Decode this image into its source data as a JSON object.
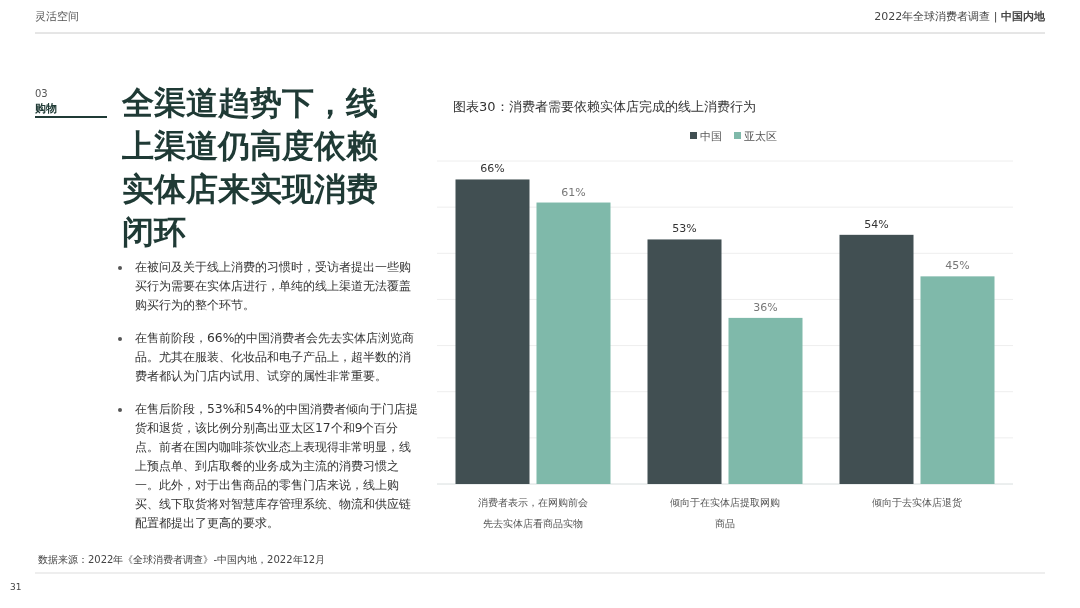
{
  "chart_data": {
    "type": "bar",
    "title": "图表30：消费者需要依赖实体店完成的线上消费行为",
    "categories": [
      "消费者表示，在网购前会先去实体店看商品实物",
      "倾向于在实体店提取网购商品",
      "倾向于去实体店退货"
    ],
    "series": [
      {
        "name": "中国",
        "color": "#414f52",
        "values": [
          66,
          53,
          54
        ],
        "value_labels": [
          "66%",
          "53%",
          "54%"
        ]
      },
      {
        "name": "亚太区",
        "color": "#7fb9aa",
        "values": [
          61,
          36,
          45
        ],
        "value_labels": [
          "61%",
          "36%",
          "45%"
        ]
      }
    ],
    "ylim": [
      0,
      70
    ],
    "yticks": [
      {
        "value": 0,
        "label": null
      },
      {
        "value": 10,
        "label": null
      },
      {
        "value": 20,
        "label": null
      },
      {
        "value": 30,
        "label": null
      },
      {
        "value": 40,
        "label": null
      },
      {
        "value": 50,
        "label": null
      },
      {
        "value": 60,
        "label": null
      },
      {
        "value": 70,
        "label": null
      }
    ],
    "tick_labels": "x",
    "grid": "y",
    "legend": "top",
    "annotations": [
      "灵活空间",
      "2022年全球消费者调查 | **中国内地**",
      "03",
      "**购物**",
      "全渠道趋势下，线上渠道仍高度依赖实体店来实现消费闭环",
      "在被问及关于线上消费的习惯时，受访者提出一些购买行为需要在实体店进行，单纯的线上渠道无法覆盖购买行为的整个环节。",
      "在售前阶段，66%的中国消费者会先去实体店浏览商品。尤其在服装、化妆品和电子产品上，超半数的消费者都认为门店内试用、试穿的属性非常重要。",
      "在售后阶段，53%和54%的中国消费者倾向于门店提货和退货，该比例分别高出亚太区17个和9个百分点。前者在国内咖啡茶饮业态上表现得非常明显，线上预点单、到店取餐的业务成为主流的消费习惯之一。此外，对于出售商品的零售门店来说，线上购买、线下取货将对智慧库存管理系统、物流和供应链配置都提出了更高的要求。",
      "数据来源：2022年《全球消费者调查》-中国内地，2022年12月",
      "31"
    ]
  }
}
